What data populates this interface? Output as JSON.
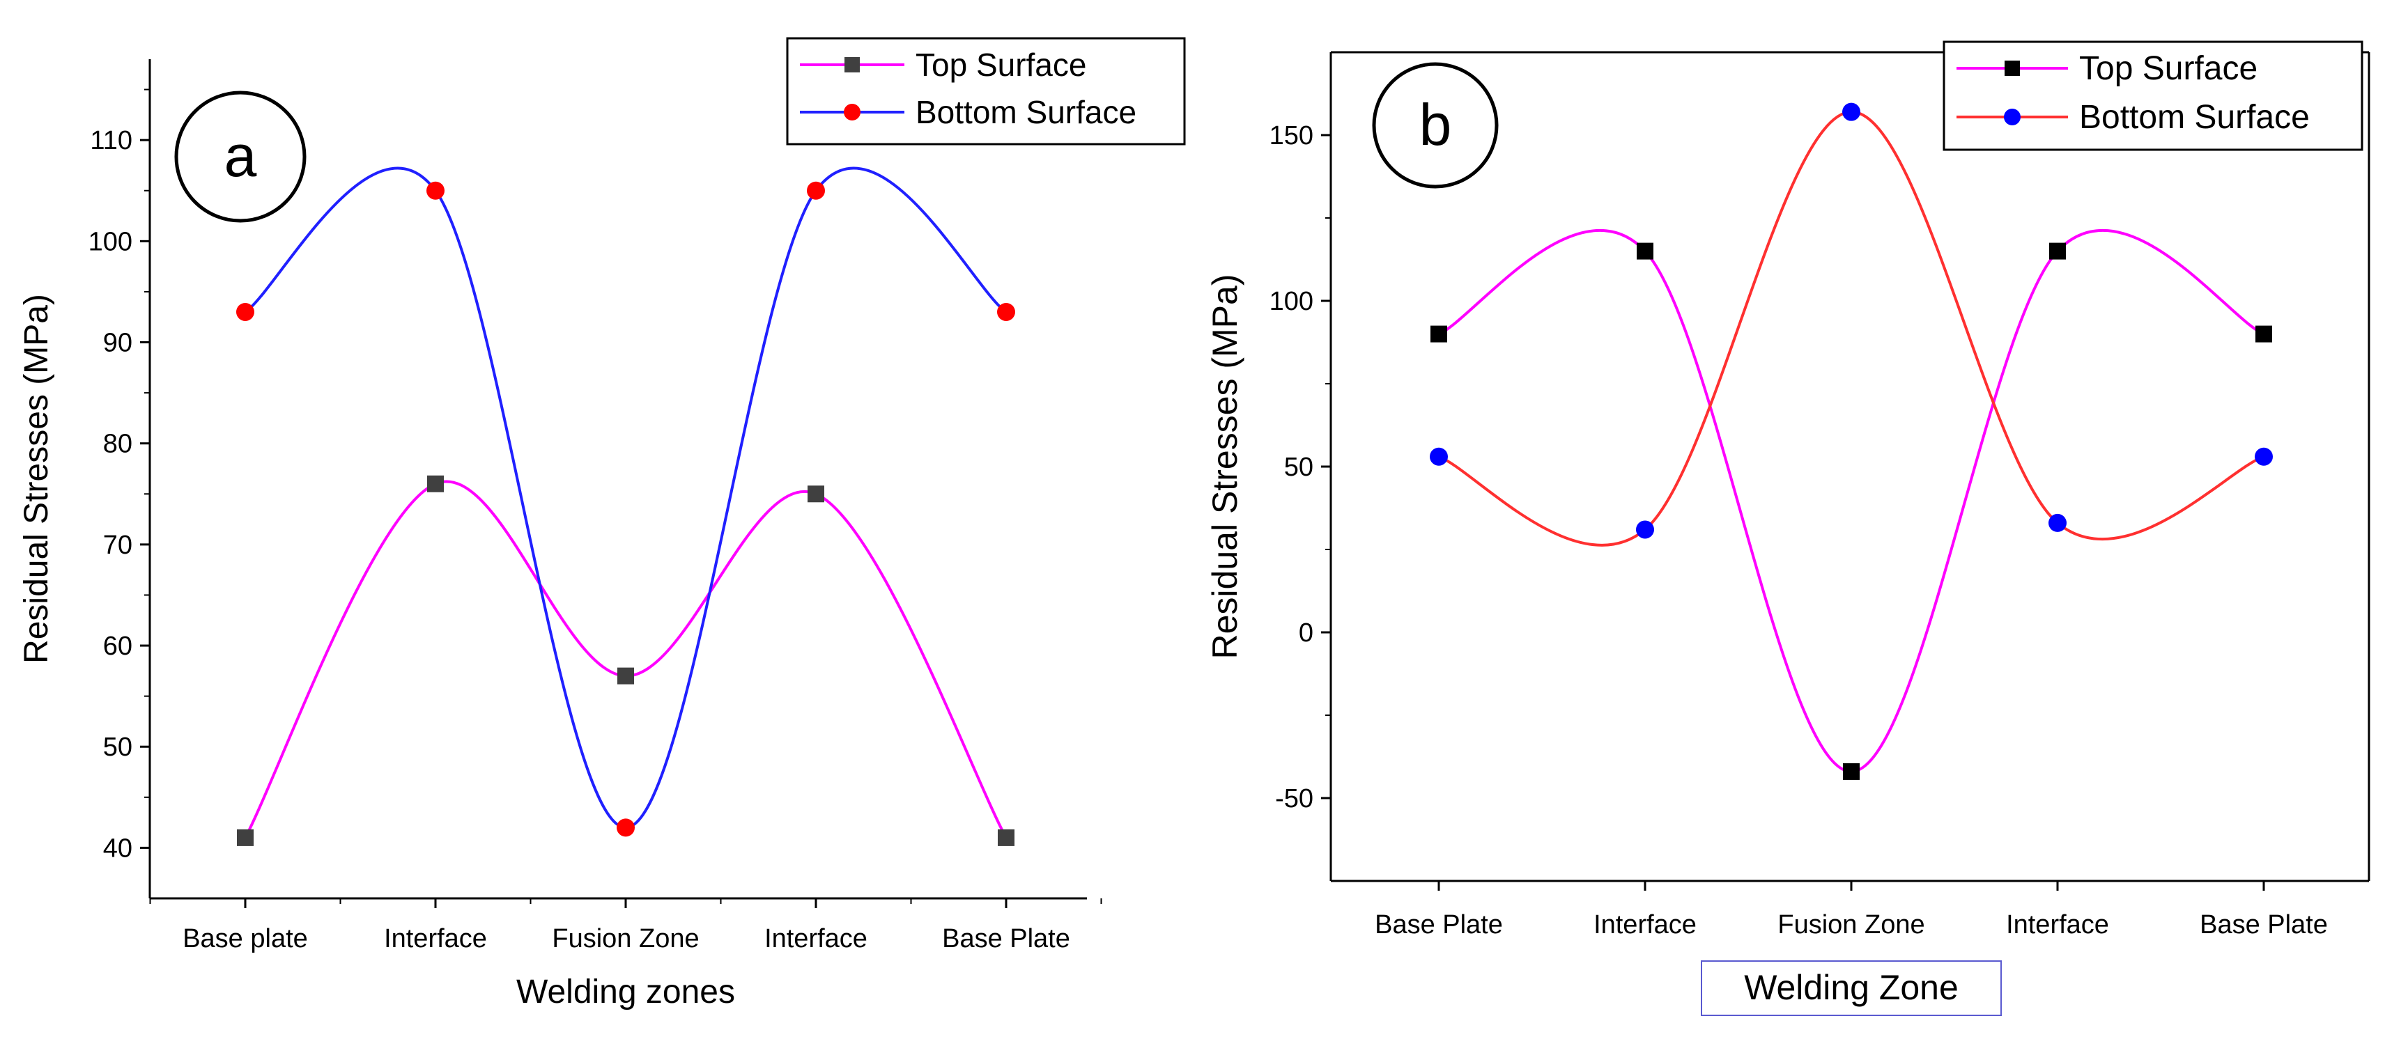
{
  "chart_data": [
    {
      "type": "line",
      "panel_label": "a",
      "title": "",
      "xlabel": "Welding zones",
      "ylabel": "Residual Stresses (MPa)",
      "categories": [
        "Base plate",
        "Interface",
        "Fusion Zone",
        "Interface",
        "Base Plate"
      ],
      "ylim": [
        35,
        118
      ],
      "yticks": [
        40,
        50,
        60,
        70,
        80,
        90,
        100,
        110
      ],
      "grid": false,
      "legend_position": "top-right",
      "series": [
        {
          "name": "Top Surface",
          "values": [
            41,
            76,
            57,
            75,
            41
          ],
          "line_color": "#ff00ff",
          "marker_color": "#404040",
          "marker": "square"
        },
        {
          "name": "Bottom Surface",
          "values": [
            93,
            105,
            42,
            105,
            93
          ],
          "line_color": "#2020ff",
          "marker_color": "#ff0000",
          "marker": "circle"
        }
      ]
    },
    {
      "type": "line",
      "panel_label": "b",
      "title": "",
      "xlabel": "Welding Zone",
      "ylabel": "Residual Stresses (MPa)",
      "categories": [
        "Base Plate",
        "Interface",
        "Fusion Zone",
        "Interface",
        "Base Plate"
      ],
      "ylim": [
        -75,
        175
      ],
      "yticks": [
        -50,
        0,
        50,
        100,
        150
      ],
      "grid": false,
      "legend_position": "top-right",
      "series": [
        {
          "name": "Top Surface",
          "values": [
            90,
            115,
            -42,
            115,
            90
          ],
          "line_color": "#ff00ff",
          "marker_color": "#000000",
          "marker": "square"
        },
        {
          "name": "Bottom Surface",
          "values": [
            53,
            31,
            157,
            33,
            53
          ],
          "line_color": "#ff3030",
          "marker_color": "#0000ff",
          "marker": "circle"
        }
      ]
    }
  ]
}
